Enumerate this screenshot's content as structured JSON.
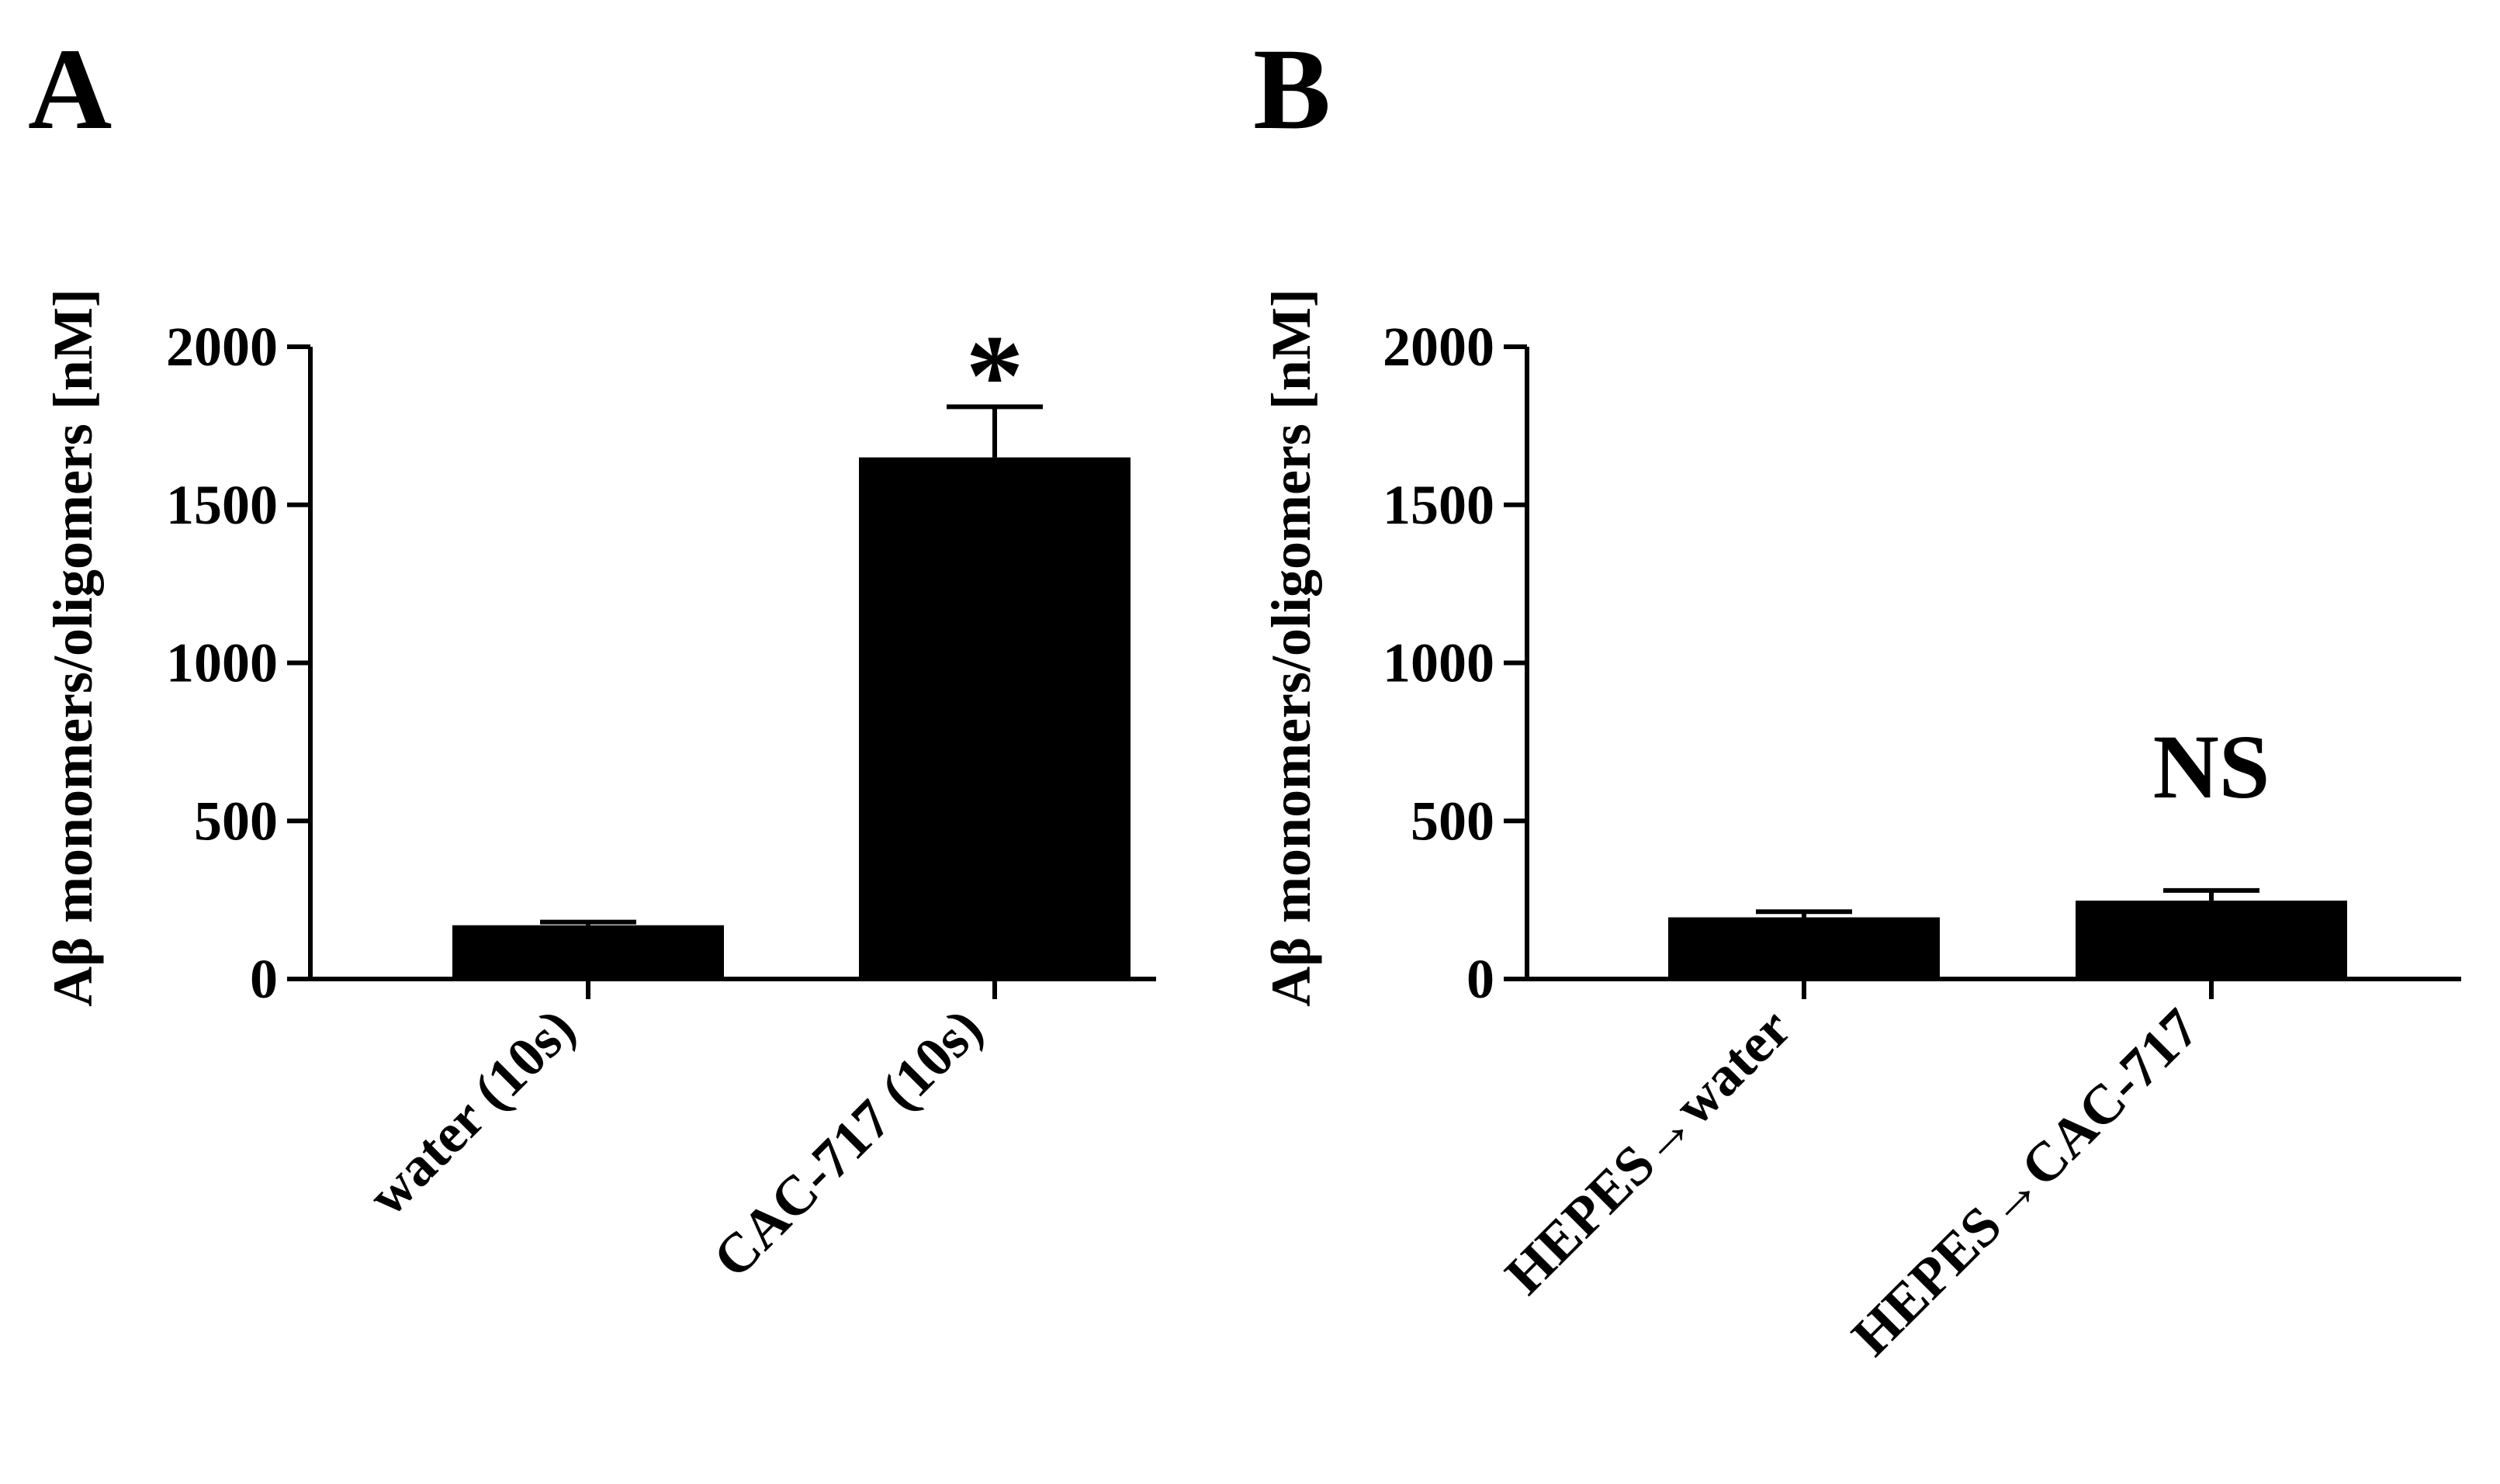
{
  "chart_data": [
    {
      "type": "bar",
      "panel_label": "A",
      "ylabel": "Aβ  monomers/oligomers [nM]",
      "xlabel": "",
      "ylim": [
        0,
        2000
      ],
      "yticks": [
        0,
        500,
        1000,
        1500,
        2000
      ],
      "categories": [
        "water (10s)",
        "CAC-717 (10s)"
      ],
      "values": [
        170,
        1650
      ],
      "errors": [
        10,
        160
      ],
      "annotations": [
        "",
        "*"
      ],
      "bar_color": "#000000",
      "grid": false,
      "legend": "none"
    },
    {
      "type": "bar",
      "panel_label": "B",
      "ylabel": "Aβ  monomers/oligomers [nM]",
      "xlabel": "",
      "ylim": [
        0,
        2000
      ],
      "yticks": [
        0,
        500,
        1000,
        1500,
        2000
      ],
      "categories": [
        "HEPES→water",
        "HEPES→CAC-717"
      ],
      "values": [
        195,
        248
      ],
      "errors": [
        18,
        32
      ],
      "annotations": [
        "",
        "NS"
      ],
      "bar_color": "#000000",
      "grid": false,
      "legend": "none"
    }
  ]
}
